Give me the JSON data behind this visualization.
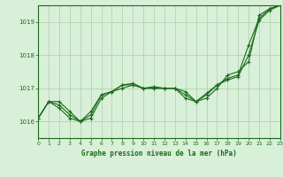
{
  "background_color": "#d8efd8",
  "plot_bg_color": "#d8efd8",
  "grid_color": "#aacfaa",
  "line_color": "#1a6b1a",
  "marker_color": "#1a6b1a",
  "title": "Graphe pression niveau de la mer (hPa)",
  "xlim": [
    0,
    23
  ],
  "ylim": [
    1015.5,
    1019.5
  ],
  "yticks": [
    1016,
    1017,
    1018,
    1019
  ],
  "xticks": [
    0,
    1,
    2,
    3,
    4,
    5,
    6,
    7,
    8,
    9,
    10,
    11,
    12,
    13,
    14,
    15,
    16,
    17,
    18,
    19,
    20,
    21,
    22,
    23
  ],
  "series": [
    [
      1016.1,
      1016.6,
      1016.6,
      1016.3,
      1016.0,
      1016.1,
      1016.7,
      1016.9,
      1017.0,
      1017.1,
      1017.0,
      1017.0,
      1017.0,
      1017.0,
      1016.7,
      1016.6,
      1016.7,
      1017.0,
      1017.4,
      1017.5,
      1017.8,
      1019.2,
      1019.4,
      1019.5
    ],
    [
      1016.1,
      1016.6,
      1016.5,
      1016.2,
      1016.0,
      1016.2,
      1016.8,
      1016.9,
      1017.1,
      1017.1,
      1017.0,
      1017.0,
      1017.0,
      1017.0,
      1016.8,
      1016.6,
      1016.8,
      1017.1,
      1017.3,
      1017.4,
      1018.3,
      1019.1,
      1019.4,
      1019.5
    ],
    [
      1016.1,
      1016.6,
      1016.4,
      1016.1,
      1016.0,
      1016.3,
      1016.8,
      1016.9,
      1017.1,
      1017.15,
      1017.0,
      1017.05,
      1017.0,
      1017.0,
      1016.9,
      1016.6,
      1016.85,
      1017.1,
      1017.25,
      1017.35,
      1018.0,
      1019.05,
      1019.35,
      1019.5
    ]
  ]
}
